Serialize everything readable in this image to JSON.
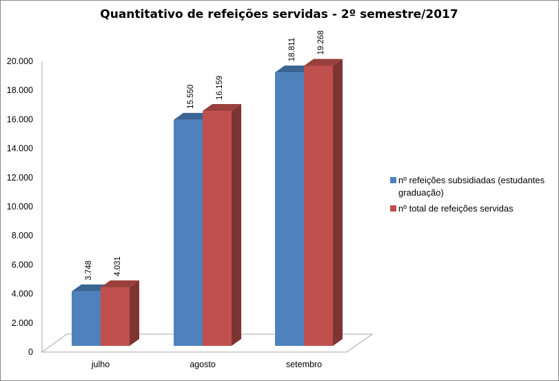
{
  "chart_data": {
    "type": "bar",
    "title": "Quantitativo  de refeições servidas - 2º semestre/2017",
    "categories": [
      "julho",
      "agosto",
      "setembro"
    ],
    "series": [
      {
        "name": "nº refeições subsidiadas (estudantes graduação)",
        "name_lines": [
          "nº refeições subsidiadas (estudantes",
          "graduação)"
        ],
        "values": [
          3748,
          15550,
          18811
        ],
        "labels": [
          "3.748",
          "15.550",
          "18.811"
        ],
        "color": "#4F81BD",
        "top_color": "#3A6494",
        "side_color": "#385D8A"
      },
      {
        "name": "nº total de refeições servidas",
        "name_lines": [
          "nº total de refeições servidas"
        ],
        "values": [
          4031,
          16159,
          19268
        ],
        "labels": [
          "4.031",
          "16.159",
          "19.268"
        ],
        "color": "#C0504D",
        "top_color": "#99403D",
        "side_color": "#7D3432"
      }
    ],
    "yticks": [
      "0",
      "2.000",
      "4.000",
      "6.000",
      "8.000",
      "10.000",
      "12.000",
      "14.000",
      "16.000",
      "18.000",
      "20.000"
    ],
    "ylim": [
      0,
      20000
    ],
    "xlabel": "",
    "ylabel": "",
    "grid": false,
    "legend": "right",
    "style": "3d-clustered-column"
  }
}
